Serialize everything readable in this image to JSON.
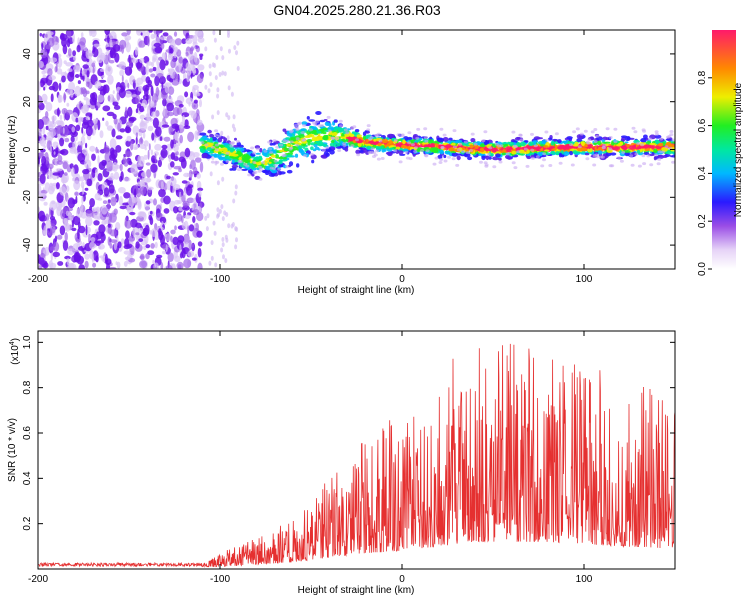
{
  "title": "GN04.2025.280.21.36.R03",
  "chart_data": [
    {
      "type": "heatmap",
      "name": "spectrogram",
      "xlabel": "Height of straight line (km)",
      "ylabel": "Frequency (Hz)",
      "xlim": [
        -200,
        150
      ],
      "ylim": [
        -50,
        50
      ],
      "x_ticks": [
        -200,
        -100,
        0,
        100
      ],
      "x_tick_labels": [
        "-200",
        "-100",
        "0",
        "100"
      ],
      "y_ticks": [
        -40,
        -20,
        0,
        20,
        40
      ],
      "y_tick_labels": [
        "-40",
        "-20",
        "0",
        "20",
        "40"
      ],
      "colorbar": {
        "label": "Normalized spectral amplitude",
        "range": [
          0,
          1
        ],
        "ticks": [
          0.0,
          0.2,
          0.4,
          0.6,
          0.8
        ],
        "tick_labels": [
          "0.0",
          "0.2",
          "0.4",
          "0.6",
          "0.8"
        ]
      },
      "noise_region_x": [
        -200,
        -110
      ],
      "signal_track": {
        "x": [
          -110,
          -100,
          -90,
          -80,
          -70,
          -60,
          -50,
          -40,
          -30,
          -20,
          0,
          50,
          100,
          150
        ],
        "freq": [
          2,
          0,
          -3,
          -6,
          -4,
          2,
          5,
          6,
          5,
          3,
          2,
          0,
          1,
          1
        ],
        "width": [
          6,
          6,
          6,
          6,
          8,
          10,
          10,
          8,
          6,
          4,
          4,
          4,
          4,
          4
        ]
      }
    },
    {
      "type": "line",
      "name": "snr",
      "xlabel": "Height of straight line (km)",
      "ylabel": "SNR (10 * v/v)",
      "scale_label": "(x10",
      "scale_exponent": "4",
      "xlim": [
        -200,
        150
      ],
      "ylim": [
        0,
        1.05
      ],
      "x_ticks": [
        -200,
        -100,
        0,
        100
      ],
      "x_tick_labels": [
        "-200",
        "-100",
        "0",
        "100"
      ],
      "y_ticks": [
        0.2,
        0.4,
        0.6,
        0.8,
        1.0
      ],
      "y_tick_labels": [
        "0.2",
        "0.4",
        "0.6",
        "0.8",
        "1.0"
      ],
      "series": [
        {
          "name": "SNR",
          "color": "#e53030",
          "envelope": {
            "x": [
              -200,
              -110,
              -100,
              -80,
              -60,
              -40,
              -20,
              0,
              20,
              40,
              60,
              80,
              100,
              120,
              150
            ],
            "max": [
              0.03,
              0.03,
              0.07,
              0.14,
              0.22,
              0.4,
              0.58,
              0.7,
              0.88,
              1.0,
              1.0,
              0.95,
              0.9,
              0.85,
              0.75
            ],
            "base": [
              0.01,
              0.01,
              0.01,
              0.02,
              0.03,
              0.05,
              0.07,
              0.08,
              0.1,
              0.12,
              0.12,
              0.12,
              0.11,
              0.1,
              0.09
            ]
          }
        }
      ]
    }
  ]
}
